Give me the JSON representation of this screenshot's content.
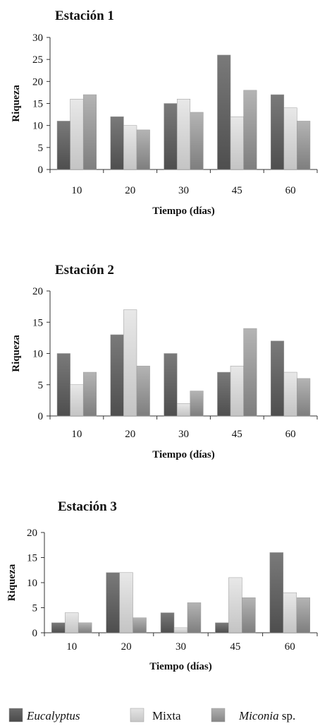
{
  "chart_data": [
    {
      "type": "bar",
      "title": "Estación 1",
      "xlabel": "Tiempo (días)",
      "ylabel": "Riqueza",
      "categories": [
        "10",
        "20",
        "30",
        "45",
        "60"
      ],
      "ylim": [
        0,
        30
      ],
      "yticks": [
        0,
        5,
        10,
        15,
        20,
        25,
        30
      ],
      "series": [
        {
          "name": "Eucalyptus",
          "values": [
            11,
            12,
            15,
            26,
            17
          ]
        },
        {
          "name": "Mixta",
          "values": [
            16,
            10,
            16,
            12,
            14
          ]
        },
        {
          "name": "Miconia sp.",
          "values": [
            17,
            9,
            13,
            18,
            11
          ]
        }
      ]
    },
    {
      "type": "bar",
      "title": "Estación 2",
      "xlabel": "Tiempo (días)",
      "ylabel": "Riqueza",
      "categories": [
        "10",
        "20",
        "30",
        "45",
        "60"
      ],
      "ylim": [
        0,
        20
      ],
      "yticks": [
        0,
        5,
        10,
        15,
        20
      ],
      "series": [
        {
          "name": "Eucalyptus",
          "values": [
            10,
            13,
            10,
            7,
            12
          ]
        },
        {
          "name": "Mixta",
          "values": [
            5,
            17,
            2,
            8,
            7
          ]
        },
        {
          "name": "Miconia sp.",
          "values": [
            7,
            8,
            4,
            14,
            6
          ]
        }
      ]
    },
    {
      "type": "bar",
      "title": "Estación 3",
      "xlabel": "Tiempo (días)",
      "ylabel": "Riqueza",
      "categories": [
        "10",
        "20",
        "30",
        "45",
        "60"
      ],
      "ylim": [
        0,
        20
      ],
      "yticks": [
        0,
        5,
        10,
        15,
        20
      ],
      "series": [
        {
          "name": "Eucalyptus",
          "values": [
            2,
            12,
            4,
            2,
            16
          ]
        },
        {
          "name": "Mixta",
          "values": [
            4,
            12,
            1,
            11,
            8
          ]
        },
        {
          "name": "Miconia sp.",
          "values": [
            2,
            3,
            6,
            7,
            7
          ]
        }
      ]
    }
  ],
  "legend": {
    "position": "bottom",
    "items": [
      {
        "name": "Eucalyptus",
        "italic_part": "Eucalyptus",
        "rest": "",
        "color_top": "#6a6a6a",
        "color_bottom": "#4a4a4a"
      },
      {
        "name": "Mixta",
        "italic_part": "",
        "rest": "Mixta",
        "color_top": "#e4e4e4",
        "color_bottom": "#c6c6c6"
      },
      {
        "name": "Miconia sp.",
        "italic_part": "Miconia",
        "rest": " sp.",
        "color_top": "#b0b0b0",
        "color_bottom": "#868686"
      }
    ]
  },
  "series_colors": [
    {
      "top": "#7a7a7a",
      "bottom": "#4e4e4e"
    },
    {
      "top": "#e8e8e8",
      "bottom": "#c4c4c4"
    },
    {
      "top": "#b4b4b4",
      "bottom": "#7e7e7e"
    }
  ]
}
